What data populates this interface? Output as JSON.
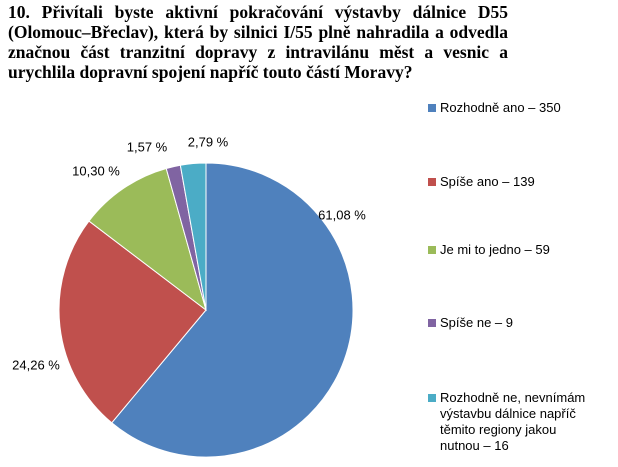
{
  "chart_data": {
    "type": "pie",
    "title": "10. Přivítali byste aktivní pokračování výstavby dálnice D55 (Olomouc–Břeclav), která by silnici I/55 plně nahradila a odvedla značnou část tranzitní dopravy z intravilánu měst a vesnic a urychlila dopravní spojení napříč touto částí Moravy?",
    "categories": [
      "Rozhodně ano – 350",
      "Spíše ano – 139",
      "Je mi to jedno – 59",
      "Spíše ne – 9",
      "Rozhodně ne, nevnímám výstavbu dálnice napříč těmito regiony jakou nutnou – 16"
    ],
    "values": [
      61.08,
      24.26,
      10.3,
      1.57,
      2.79
    ],
    "value_labels": [
      "61,08 %",
      "24,26 %",
      "10,30 %",
      "1,57 %",
      "2,79 %"
    ],
    "colors": [
      "#4f81bd",
      "#c0504d",
      "#9bbb59",
      "#8064a2",
      "#4bacc6"
    ],
    "legend": "right"
  }
}
